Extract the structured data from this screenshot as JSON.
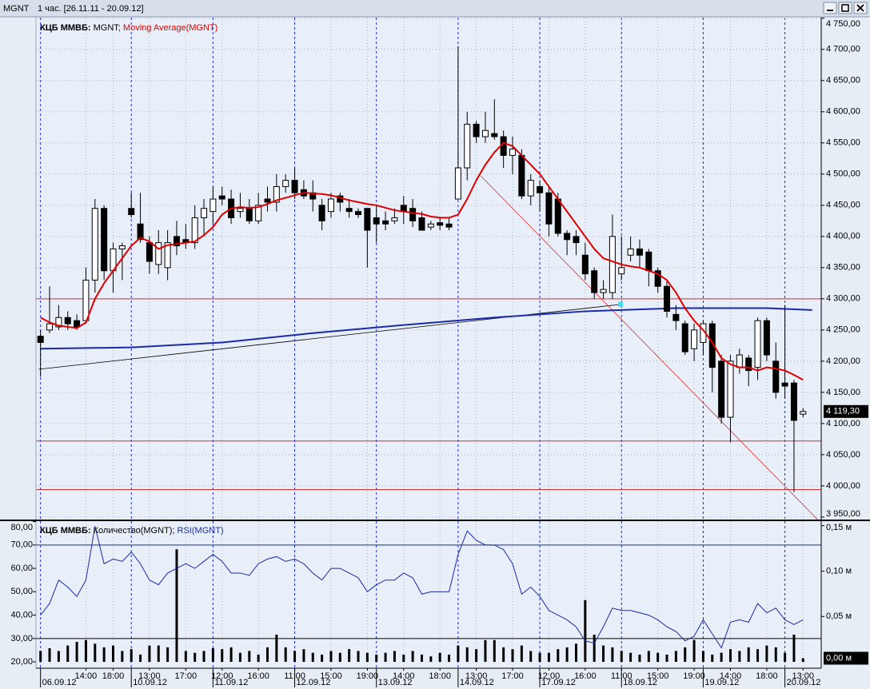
{
  "window": {
    "symbol": "MGNT",
    "period": "1 час. [26.11.11 - 20.09.12]"
  },
  "chart_data": [
    {
      "type": "candlestick",
      "source": "КЦБ ММВБ:",
      "symbol": "MGNT;",
      "ylim": [
        3946,
        4751
      ],
      "yticks": [
        {
          "value": 4750,
          "label": "4 750,00"
        },
        {
          "value": 4700,
          "label": "4 700,00"
        },
        {
          "value": 4650,
          "label": "4 650,00"
        },
        {
          "value": 4600,
          "label": "4 600,00"
        },
        {
          "value": 4550,
          "label": "4 550,00"
        },
        {
          "value": 4500,
          "label": "4 500,00"
        },
        {
          "value": 4450,
          "label": "4 450,00"
        },
        {
          "value": 4400,
          "label": "4 400,00"
        },
        {
          "value": 4350,
          "label": "4 350,00"
        },
        {
          "value": 4300,
          "label": "4 300,00"
        },
        {
          "value": 4250,
          "label": "4 250,00"
        },
        {
          "value": 4200,
          "label": "4 200,00"
        },
        {
          "value": 4150,
          "label": "4 150,00"
        },
        {
          "value": 4100,
          "label": "4 100,00"
        },
        {
          "value": 4050,
          "label": "4 050,00"
        },
        {
          "value": 4000,
          "label": "4 000,00"
        },
        {
          "value": 3950,
          "label": "3 950,00"
        }
      ],
      "grid": true,
      "up_color": "#ffffff",
      "down_color": "#000000",
      "ohlc": {
        "open": [
          4240,
          4250,
          4255,
          4270,
          4265,
          4265,
          4330,
          4445,
          4345,
          4380,
          4445,
          4420,
          4390,
          4355,
          4350,
          4400,
          4395,
          4390,
          4430,
          4440,
          4465,
          4460,
          4440,
          4445,
          4425,
          4460,
          4455,
          4480,
          4490,
          4475,
          4470,
          4450,
          4440,
          4465,
          4445,
          4440,
          4445,
          4430,
          4425,
          4425,
          4450,
          4445,
          4430,
          4415,
          4422,
          4420,
          4460,
          4510,
          4580,
          4560,
          4565,
          4560,
          4530,
          4530,
          4465,
          4480,
          4470,
          4460,
          4405,
          4400,
          4370,
          4345,
          4310,
          4310,
          4340,
          4370,
          4380,
          4375,
          4345,
          4320,
          4275,
          4260,
          4220,
          4230,
          4260,
          4200,
          4110,
          4190,
          4205,
          4190,
          4265,
          4200,
          4165,
          4165,
          4115
        ],
        "high": [
          4250,
          4320,
          4290,
          4280,
          4275,
          4350,
          4460,
          4450,
          4390,
          4390,
          4470,
          4470,
          4400,
          4410,
          4410,
          4425,
          4420,
          4450,
          4460,
          4480,
          4480,
          4475,
          4470,
          4460,
          4470,
          4480,
          4500,
          4500,
          4510,
          4490,
          4490,
          4460,
          4470,
          4470,
          4460,
          4445,
          4445,
          4450,
          4440,
          4445,
          4465,
          4460,
          4440,
          4425,
          4430,
          4430,
          4705,
          4600,
          4585,
          4600,
          4620,
          4570,
          4560,
          4540,
          4500,
          4490,
          4480,
          4470,
          4410,
          4410,
          4390,
          4350,
          4330,
          4435,
          4400,
          4400,
          4395,
          4380,
          4350,
          4330,
          4290,
          4265,
          4260,
          4265,
          4265,
          4210,
          4210,
          4220,
          4210,
          4270,
          4270,
          4230,
          4290,
          4170,
          4125
        ],
        "low": [
          4175,
          4245,
          4250,
          4250,
          4250,
          4260,
          4310,
          4330,
          4310,
          4330,
          4430,
          4390,
          4340,
          4340,
          4330,
          4370,
          4380,
          4380,
          4400,
          4420,
          4450,
          4420,
          4430,
          4420,
          4420,
          4440,
          4440,
          4470,
          4460,
          4460,
          4440,
          4410,
          4430,
          4440,
          4430,
          4430,
          4350,
          4390,
          4410,
          4420,
          4420,
          4415,
          4410,
          4410,
          4410,
          4410,
          4460,
          4490,
          4550,
          4550,
          4555,
          4510,
          4500,
          4460,
          4450,
          4440,
          4400,
          4400,
          4370,
          4370,
          4330,
          4300,
          4300,
          4300,
          4330,
          4360,
          4350,
          4320,
          4310,
          4270,
          4250,
          4210,
          4200,
          4210,
          4150,
          4100,
          4070,
          4180,
          4160,
          4170,
          4200,
          4140,
          4140,
          3990,
          4110
        ],
        "close": [
          4230,
          4260,
          4270,
          4260,
          4255,
          4330,
          4445,
          4345,
          4380,
          4385,
          4435,
          4395,
          4360,
          4390,
          4390,
          4385,
          4390,
          4430,
          4445,
          4460,
          4460,
          4430,
          4445,
          4425,
          4450,
          4455,
          4480,
          4490,
          4470,
          4465,
          4460,
          4425,
          4460,
          4455,
          4440,
          4435,
          4410,
          4420,
          4420,
          4430,
          4440,
          4425,
          4410,
          4420,
          4418,
          4415,
          4510,
          4580,
          4560,
          4570,
          4560,
          4530,
          4540,
          4465,
          4490,
          4470,
          4420,
          4405,
          4395,
          4390,
          4340,
          4310,
          4315,
          4400,
          4350,
          4380,
          4370,
          4345,
          4320,
          4280,
          4265,
          4215,
          4250,
          4260,
          4190,
          4110,
          4200,
          4210,
          4185,
          4265,
          4210,
          4150,
          4160,
          4105,
          4119.3
        ]
      },
      "last_price": {
        "value": 4119.3,
        "label": "4 119,30"
      },
      "ma": {
        "name": "Moving Average(MGNT)",
        "color": "#e00000",
        "values": [
          4270,
          4262,
          4257,
          4255,
          4253,
          4262,
          4300,
          4325,
          4345,
          4365,
          4385,
          4398,
          4392,
          4380,
          4386,
          4388,
          4390,
          4392,
          4402,
          4415,
          4435,
          4445,
          4447,
          4446,
          4447,
          4452,
          4458,
          4462,
          4466,
          4470,
          4469,
          4468,
          4466,
          4462,
          4458,
          4455,
          4452,
          4450,
          4446,
          4442,
          4440,
          4438,
          4436,
          4432,
          4430,
          4430,
          4435,
          4460,
          4490,
          4515,
          4535,
          4550,
          4545,
          4530,
          4515,
          4500,
          4480,
          4460,
          4440,
          4420,
          4400,
          4380,
          4365,
          4360,
          4355,
          4352,
          4350,
          4345,
          4340,
          4330,
          4310,
          4285,
          4265,
          4250,
          4230,
          4205,
          4195,
          4190,
          4190,
          4185,
          4190,
          4188,
          4185,
          4178,
          4170
        ]
      },
      "ma_long": {
        "color": "#1a2aa8",
        "x": [
          0,
          10,
          20,
          30,
          40,
          50,
          60,
          70,
          80,
          85
        ],
        "values": [
          4220,
          4222,
          4230,
          4245,
          4258,
          4270,
          4280,
          4285,
          4285,
          4282
        ]
      },
      "hlines": [
        {
          "value": 4300,
          "color": "#d03030"
        },
        {
          "value": 4072,
          "color": "#d03030"
        },
        {
          "value": 3994,
          "color": "#d03030"
        }
      ],
      "trendlines": [
        {
          "x": [
            -0.2,
            63.9
          ],
          "values": [
            4187,
            4291
          ],
          "color": "#000000"
        },
        {
          "x": [
            48.5,
            85.6
          ],
          "values": [
            4497,
            3946
          ],
          "color": "#e03030"
        }
      ]
    },
    {
      "type": "combo",
      "source": "КЦБ ММВБ:",
      "ylim": [
        17.3,
        80.2
      ],
      "yticks": [
        {
          "value": 80,
          "label": "80,00"
        },
        {
          "value": 70,
          "label": "70,00"
        },
        {
          "value": 60,
          "label": "60,00"
        },
        {
          "value": 50,
          "label": "50,00"
        },
        {
          "value": 40,
          "label": "40,00"
        },
        {
          "value": 30,
          "label": "30,00"
        },
        {
          "value": 20,
          "label": "20,00"
        }
      ],
      "y2lim": [
        -0.007,
        0.155
      ],
      "y2ticks": [
        {
          "value": 0.15,
          "label": "0,15 м"
        },
        {
          "value": 0.1,
          "label": "0,10 м"
        },
        {
          "value": 0.05,
          "label": "0,05 м"
        }
      ],
      "volume": {
        "name": "Количество(MGNT);",
        "color": "#000000",
        "axis": "y2",
        "values": [
          0.012,
          0.015,
          0.012,
          0.018,
          0.022,
          0.024,
          0.02,
          0.016,
          0.018,
          0.012,
          0.014,
          0.008,
          0.018,
          0.018,
          0.016,
          0.124,
          0.012,
          0.01,
          0.012,
          0.015,
          0.014,
          0.016,
          0.01,
          0.012,
          0.008,
          0.016,
          0.03,
          0.016,
          0.012,
          0.014,
          0.01,
          0.008,
          0.012,
          0.01,
          0.014,
          0.012,
          0.01,
          0.008,
          0.01,
          0.012,
          0.008,
          0.012,
          0.008,
          0.006,
          0.01,
          0.008,
          0.018,
          0.016,
          0.014,
          0.024,
          0.024,
          0.016,
          0.014,
          0.018,
          0.012,
          0.01,
          0.01,
          0.014,
          0.016,
          0.02,
          0.068,
          0.03,
          0.018,
          0.016,
          0.012,
          0.01,
          0.008,
          0.012,
          0.01,
          0.008,
          0.012,
          0.016,
          0.024,
          0.012,
          0.008,
          0.01,
          0.014,
          0.012,
          0.016,
          0.014,
          0.018,
          0.016,
          0.01,
          0.03,
          0.004
        ]
      },
      "last_volume": {
        "value": 0.004,
        "label": "0,00 м"
      },
      "rsi": {
        "name": "RSI(MGNT)",
        "color": "#1a2aa8",
        "values": [
          40,
          45,
          55,
          52,
          48,
          55,
          78,
          62,
          64,
          63,
          67,
          62,
          55,
          53,
          58,
          60,
          62,
          60,
          63,
          66,
          63,
          58,
          58,
          57,
          62,
          64,
          65,
          63,
          64,
          62,
          58,
          55,
          60,
          60,
          58,
          56,
          50,
          53,
          55,
          55,
          58,
          56,
          49,
          50,
          50,
          50,
          66,
          76,
          72,
          70,
          70,
          68,
          62,
          49,
          52,
          48,
          42,
          40,
          38,
          35,
          29,
          28,
          35,
          43,
          42,
          42,
          41,
          40,
          38,
          35,
          33,
          29,
          31,
          38,
          32,
          26,
          37,
          38,
          37,
          45,
          41,
          43,
          38,
          36,
          38
        ]
      },
      "hlines": [
        {
          "value": 70,
          "color": "#1a2aa8"
        },
        {
          "value": 30,
          "color": "#000000"
        }
      ],
      "xlim": [
        -0.5,
        86
      ],
      "xticks": [
        {
          "value": 5,
          "label": "14:00"
        },
        {
          "value": 8,
          "label": "18:00"
        },
        {
          "value": 12,
          "label": "13:00"
        },
        {
          "value": 16,
          "label": "17:00"
        },
        {
          "value": 20,
          "label": "12:00"
        },
        {
          "value": 24,
          "label": "16:00"
        },
        {
          "value": 28,
          "label": "11:00"
        },
        {
          "value": 32,
          "label": "15:00"
        },
        {
          "value": 36,
          "label": "19:00"
        },
        {
          "value": 40,
          "label": "14:00"
        },
        {
          "value": 44,
          "label": "18:00"
        },
        {
          "value": 48,
          "label": "13:00"
        },
        {
          "value": 52,
          "label": "17:00"
        },
        {
          "value": 56,
          "label": "12:00"
        },
        {
          "value": 60,
          "label": "16:00"
        },
        {
          "value": 64,
          "label": "11:00"
        },
        {
          "value": 68,
          "label": "15:00"
        },
        {
          "value": 72,
          "label": "19:00"
        },
        {
          "value": 76,
          "label": "14:00"
        },
        {
          "value": 80,
          "label": "18:00"
        },
        {
          "value": 84,
          "label": "13:00"
        }
      ],
      "date_ticks": [
        {
          "value": 0,
          "label": "06.09.12"
        },
        {
          "value": 10,
          "label": "10.09.12"
        },
        {
          "value": 19,
          "label": "11.09.12"
        },
        {
          "value": 28,
          "label": "12.09.12"
        },
        {
          "value": 37,
          "label": "13.09.12"
        },
        {
          "value": 46,
          "label": "14.09.12"
        },
        {
          "value": 55,
          "label": "17.09.12"
        },
        {
          "value": 64,
          "label": "18.09.12"
        },
        {
          "value": 73,
          "label": "19.09.12"
        },
        {
          "value": 82,
          "label": "20.09.12"
        }
      ]
    }
  ]
}
